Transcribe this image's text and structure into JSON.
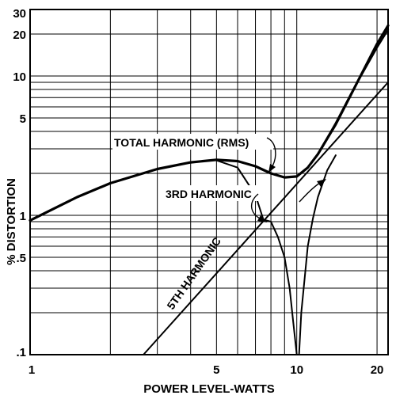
{
  "chart_data": {
    "type": "line",
    "title": "",
    "xlabel": "POWER LEVEL-WATTS",
    "ylabel": "% DISTORTION",
    "xscale": "log",
    "yscale": "log",
    "xlim": [
      1,
      22
    ],
    "ylim": [
      0.1,
      30
    ],
    "grid": true,
    "x_ticks": [
      {
        "value": 1,
        "label": "1"
      },
      {
        "value": 5,
        "label": "5"
      },
      {
        "value": 10,
        "label": "10"
      },
      {
        "value": 20,
        "label": "20"
      }
    ],
    "y_ticks": [
      {
        "value": 0.1,
        "label": ".1"
      },
      {
        "value": 0.5,
        "label": ".5"
      },
      {
        "value": 1,
        "label": "1"
      },
      {
        "value": 5,
        "label": "5"
      },
      {
        "value": 10,
        "label": "10"
      },
      {
        "value": 20,
        "label": "20"
      },
      {
        "value": 30,
        "label": "30"
      }
    ],
    "series": [
      {
        "name": "TOTAL HARMONIC (RMS)",
        "x": [
          1,
          1.5,
          2,
          3,
          4,
          5,
          6,
          7,
          8,
          9,
          10,
          11,
          12,
          14,
          16,
          18,
          20,
          22
        ],
        "y": [
          0.92,
          1.35,
          1.7,
          2.15,
          2.4,
          2.5,
          2.45,
          2.25,
          2.0,
          1.87,
          1.9,
          2.2,
          2.75,
          4.5,
          7.4,
          11.5,
          17,
          23
        ]
      },
      {
        "name": "3RD HARMONIC",
        "x": [
          1,
          1.5,
          2,
          3,
          4,
          5,
          6,
          7,
          8,
          9,
          10,
          11,
          12,
          14,
          16,
          18,
          20,
          22
        ],
        "y": [
          0.92,
          1.35,
          1.7,
          2.15,
          2.4,
          2.5,
          2.45,
          2.25,
          2.0,
          1.87,
          1.9,
          2.2,
          2.75,
          4.6,
          7.5,
          11.2,
          16,
          21.5
        ]
      },
      {
        "name": "",
        "x": [
          5,
          6,
          7,
          7.5,
          8,
          8.5,
          9,
          9.4,
          9.7,
          9.9,
          10,
          10.2
        ],
        "y": [
          2.48,
          2.2,
          1.4,
          0.93,
          0.9,
          0.7,
          0.5,
          0.3,
          0.17,
          0.12,
          0.1,
          0.1
        ]
      },
      {
        "name": "",
        "x": [
          10.2,
          10.4,
          10.7,
          11,
          11.5,
          12,
          13,
          14
        ],
        "y": [
          0.1,
          0.2,
          0.35,
          0.6,
          0.95,
          1.35,
          2.1,
          2.7
        ]
      },
      {
        "name": "5TH HARMONIC",
        "x": [
          2.66,
          22
        ],
        "y": [
          0.1,
          9
        ]
      }
    ],
    "annotations": [
      {
        "text": "TOTAL HARMONIC (RMS)",
        "target": {
          "x": 7.6,
          "y": 2.1
        }
      },
      {
        "text": "3RD HARMONIC",
        "target": {
          "x": 7.8,
          "y": 0.92
        }
      },
      {
        "text": "5TH HARMONIC",
        "target": {
          "x": 11.5,
          "y": 1.9
        }
      }
    ]
  }
}
